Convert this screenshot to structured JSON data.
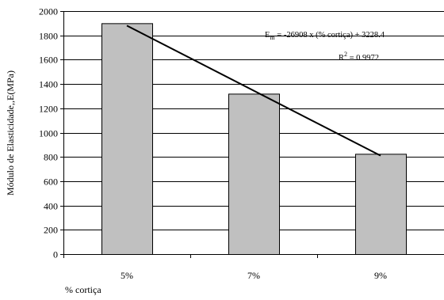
{
  "chart_data": {
    "type": "bar",
    "categories": [
      "5%",
      "7%",
      "9%"
    ],
    "values": [
      1900,
      1320,
      825
    ],
    "xlabel": "% cortiça",
    "ylabel": "Módulo de Elasticidade,,E(MPa)",
    "ylim": [
      0,
      2000
    ],
    "ytick_step": 200,
    "yticks": [
      "0",
      "200",
      "400",
      "600",
      "800",
      "1000",
      "1200",
      "1400",
      "1600",
      "1800",
      "2000"
    ],
    "grid": true,
    "bar_color": "#c0c0c0",
    "trendline": {
      "type": "linear",
      "equation": {
        "base": "E",
        "sub": "m",
        "rest": " = -26908 x (% cortiça) + 3228.4"
      },
      "r2": {
        "base": "R",
        "sup": "2",
        "rest": " = 0.9972"
      },
      "from_value": 1880,
      "to_value": 810
    }
  }
}
